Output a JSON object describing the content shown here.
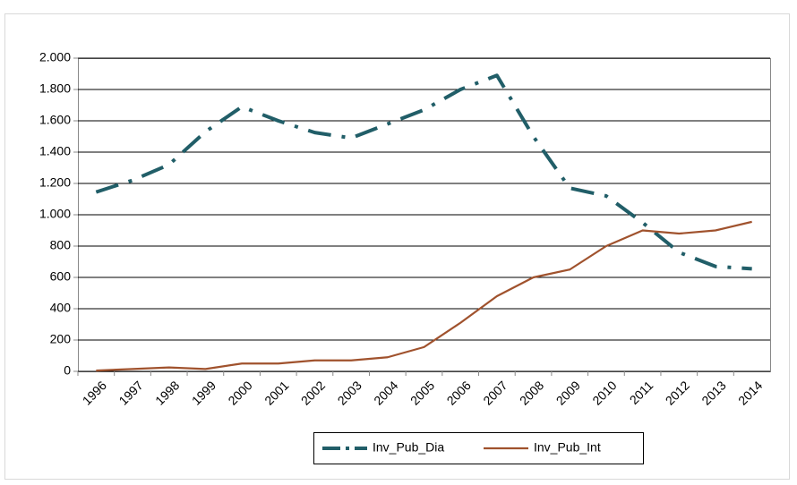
{
  "chart_data": {
    "type": "line",
    "categories": [
      "1996",
      "1997",
      "1998",
      "1999",
      "2000",
      "2001",
      "2002",
      "2003",
      "2004",
      "2005",
      "2006",
      "2007",
      "2008",
      "2009",
      "2010",
      "2011",
      "2012",
      "2013",
      "2014"
    ],
    "series": [
      {
        "name": "Inv_Pub_Dia",
        "color": "#215e68",
        "values": [
          1145,
          1220,
          1320,
          1530,
          1690,
          1600,
          1525,
          1490,
          1580,
          1670,
          1800,
          1890,
          1500,
          1170,
          1120,
          950,
          760,
          670,
          655
        ]
      },
      {
        "name": "Inv_Pub_Int",
        "color": "#a0522d",
        "values": [
          5,
          15,
          25,
          15,
          50,
          50,
          70,
          70,
          90,
          155,
          310,
          480,
          600,
          650,
          800,
          900,
          880,
          900,
          955
        ]
      }
    ],
    "ylim": [
      0,
      2000
    ],
    "yticks": [
      0,
      200,
      400,
      600,
      800,
      {
        "value": 1000,
        "label": "1.000"
      },
      {
        "value": 1200,
        "label": "1.200"
      },
      {
        "value": 1400,
        "label": "1.400"
      },
      {
        "value": 1600,
        "label": "1.600"
      },
      {
        "value": 1800,
        "label": "1.800"
      },
      {
        "value": 2000,
        "label": "2.000"
      }
    ],
    "grid": true,
    "legend": "bottom"
  }
}
